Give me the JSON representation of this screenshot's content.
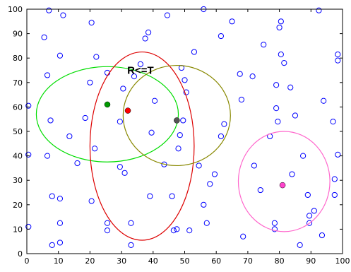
{
  "chart_data": {
    "type": "scatter",
    "title": "",
    "xlabel": "",
    "ylabel": "",
    "xlim": [
      0,
      100
    ],
    "ylim": [
      0,
      100
    ],
    "xticks": [
      "0",
      "10",
      "20",
      "30",
      "40",
      "50",
      "60",
      "70",
      "80",
      "90",
      "100"
    ],
    "yticks": [
      "0",
      "10",
      "20",
      "30",
      "40",
      "50",
      "60",
      "70",
      "80",
      "90",
      "100"
    ],
    "grid": false,
    "legend": "none",
    "marker_color": "#0000ff",
    "points": [
      [
        0.5,
        60.5
      ],
      [
        0.5,
        40.5
      ],
      [
        0.5,
        11.0
      ],
      [
        5.5,
        88.5
      ],
      [
        6.5,
        73.0
      ],
      [
        6.5,
        40.0
      ],
      [
        7.0,
        99.5
      ],
      [
        7.5,
        54.5
      ],
      [
        8.0,
        23.5
      ],
      [
        8.0,
        3.5
      ],
      [
        10.5,
        81.0
      ],
      [
        10.5,
        22.5
      ],
      [
        10.5,
        12.5
      ],
      [
        10.5,
        4.5
      ],
      [
        11.5,
        97.5
      ],
      [
        13.5,
        48.0
      ],
      [
        16.0,
        37.0
      ],
      [
        18.5,
        55.5
      ],
      [
        20.0,
        70.0
      ],
      [
        20.5,
        94.5
      ],
      [
        20.5,
        21.5
      ],
      [
        21.5,
        43.0
      ],
      [
        22.0,
        80.5
      ],
      [
        25.5,
        74.0
      ],
      [
        25.5,
        12.5
      ],
      [
        25.5,
        9.5
      ],
      [
        29.5,
        35.5
      ],
      [
        29.5,
        54.0
      ],
      [
        30.5,
        67.5
      ],
      [
        31.0,
        33.0
      ],
      [
        33.0,
        12.5
      ],
      [
        33.0,
        3.5
      ],
      [
        34.0,
        72.5
      ],
      [
        36.0,
        77.5
      ],
      [
        37.5,
        88.0
      ],
      [
        38.5,
        90.5
      ],
      [
        39.0,
        23.5
      ],
      [
        39.5,
        49.5
      ],
      [
        40.5,
        62.5
      ],
      [
        43.5,
        36.5
      ],
      [
        44.5,
        97.5
      ],
      [
        46.0,
        23.5
      ],
      [
        46.5,
        9.5
      ],
      [
        47.5,
        10.0
      ],
      [
        48.0,
        43.0
      ],
      [
        48.5,
        48.5
      ],
      [
        49.0,
        76.0
      ],
      [
        49.5,
        54.5
      ],
      [
        50.0,
        71.0
      ],
      [
        50.5,
        66.0
      ],
      [
        51.5,
        9.5
      ],
      [
        53.0,
        82.5
      ],
      [
        54.5,
        36.0
      ],
      [
        56.0,
        100.0
      ],
      [
        56.0,
        20.0
      ],
      [
        57.0,
        12.5
      ],
      [
        58.0,
        28.5
      ],
      [
        59.5,
        32.5
      ],
      [
        61.5,
        48.0
      ],
      [
        61.5,
        89.0
      ],
      [
        62.5,
        53.0
      ],
      [
        65.0,
        95.0
      ],
      [
        67.5,
        73.5
      ],
      [
        68.0,
        63.0
      ],
      [
        68.5,
        7.0
      ],
      [
        71.5,
        72.5
      ],
      [
        72.0,
        36.0
      ],
      [
        74.0,
        26.0
      ],
      [
        75.0,
        85.5
      ],
      [
        77.0,
        48.0
      ],
      [
        78.5,
        10.0
      ],
      [
        78.5,
        12.5
      ],
      [
        79.0,
        69.0
      ],
      [
        79.0,
        59.5
      ],
      [
        79.5,
        54.0
      ],
      [
        80.0,
        92.5
      ],
      [
        80.5,
        95.0
      ],
      [
        80.5,
        81.5
      ],
      [
        81.5,
        78.0
      ],
      [
        83.5,
        68.0
      ],
      [
        84.0,
        32.5
      ],
      [
        85.0,
        56.5
      ],
      [
        86.5,
        3.5
      ],
      [
        87.5,
        40.0
      ],
      [
        89.0,
        24.0
      ],
      [
        89.5,
        15.5
      ],
      [
        89.5,
        12.5
      ],
      [
        91.0,
        17.5
      ],
      [
        92.5,
        99.5
      ],
      [
        93.5,
        7.5
      ],
      [
        94.0,
        62.5
      ],
      [
        97.0,
        54.0
      ],
      [
        97.5,
        30.5
      ],
      [
        97.5,
        24.0
      ],
      [
        98.5,
        79.0
      ],
      [
        98.5,
        81.5
      ],
      [
        98.5,
        40.5
      ]
    ],
    "highlighted_points": [
      {
        "x": 25.5,
        "y": 61.0,
        "color": "#009900"
      },
      {
        "x": 32.0,
        "y": 58.5,
        "color": "#ff0000"
      },
      {
        "x": 47.5,
        "y": 54.5,
        "color": "#555555"
      },
      {
        "x": 81.0,
        "y": 28.0,
        "color": "#ff44cc"
      }
    ],
    "ellipses": [
      {
        "cx": 25.5,
        "cy": 57.0,
        "rx": 22.5,
        "ry": 19.5,
        "color": "#00dd00"
      },
      {
        "cx": 36.5,
        "cy": 44.0,
        "rx": 16.5,
        "ry": 38.5,
        "color": "#dd0000"
      },
      {
        "cx": 47.5,
        "cy": 56.5,
        "rx": 17.0,
        "ry": 20.5,
        "color": "#888800"
      },
      {
        "cx": 81.5,
        "cy": 29.5,
        "rx": 14.5,
        "ry": 20.5,
        "color": "#ff66cc"
      }
    ],
    "annotations": [
      {
        "text": "R<=T",
        "x": 36.0,
        "y": 73.5
      }
    ]
  }
}
